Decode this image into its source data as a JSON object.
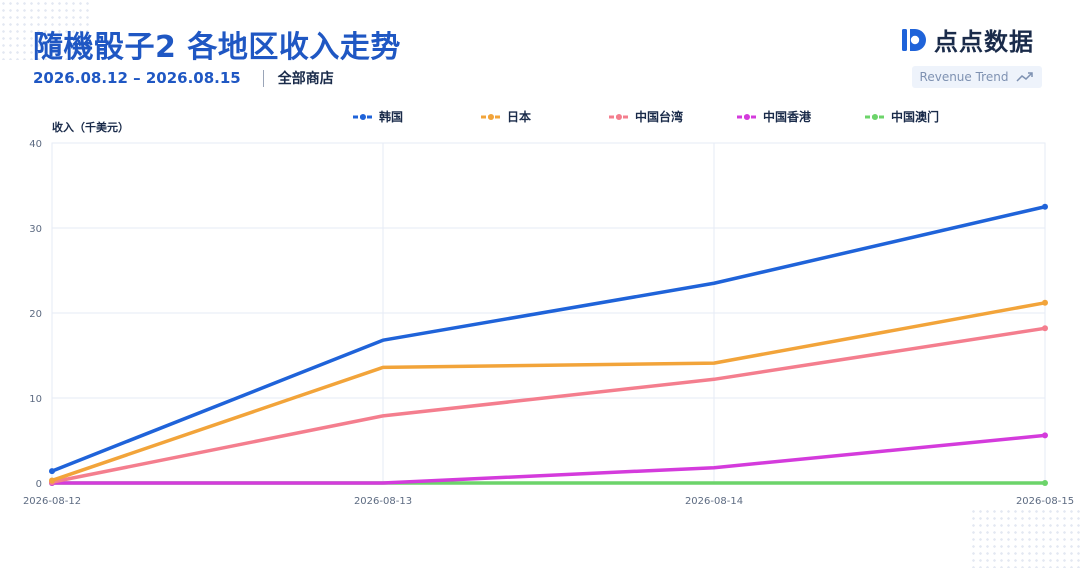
{
  "header": {
    "title": "隨機骰子2 各地区收入走势",
    "date_range": "2026.08.12 – 2026.08.15",
    "store": "全部商店",
    "logo_text": "点点数据",
    "badge": "Revenue Trend"
  },
  "colors": {
    "title": "#1f57c3",
    "grid": "#e6ebf5"
  },
  "chart_data": {
    "type": "line",
    "title": "隨機骰子2 各地区收入走势",
    "xlabel": "",
    "ylabel": "收入（千美元）",
    "x": [
      "2026-08-12",
      "2026-08-13",
      "2026-08-14",
      "2026-08-15"
    ],
    "ylim": [
      0,
      40
    ],
    "yticks": [
      0,
      10,
      20,
      30,
      40
    ],
    "grid": true,
    "legend_position": "top",
    "series": [
      {
        "name": "韩国",
        "color": "#1f63d9",
        "values": [
          1.4,
          16.8,
          23.5,
          32.5
        ]
      },
      {
        "name": "日本",
        "color": "#f2a43a",
        "values": [
          0.3,
          13.6,
          14.1,
          21.2
        ]
      },
      {
        "name": "中国台湾",
        "color": "#f47e8e",
        "values": [
          0.1,
          7.9,
          12.2,
          18.2
        ]
      },
      {
        "name": "中国香港",
        "color": "#d43bdc",
        "values": [
          0,
          0,
          1.8,
          5.6
        ]
      },
      {
        "name": "中国澳门",
        "color": "#6cd46a",
        "values": [
          0,
          0,
          0,
          0
        ]
      }
    ]
  }
}
